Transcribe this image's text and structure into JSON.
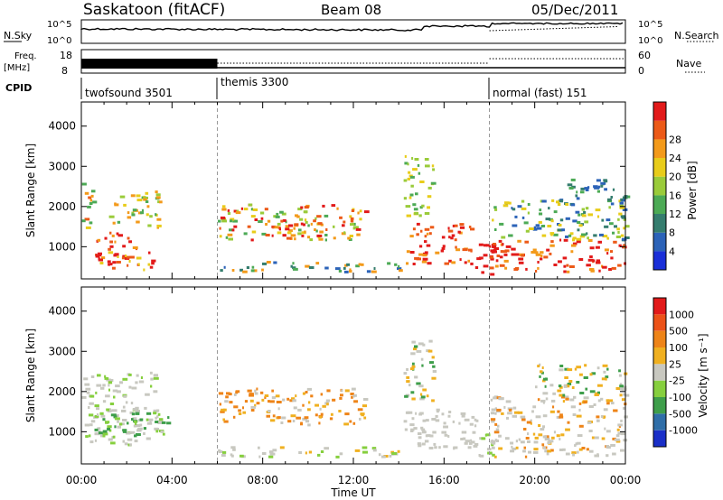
{
  "header": {
    "station_title": "Saskatoon (fitACF)",
    "beam_title": "Beam 08",
    "date_title": "05/Dec/2011"
  },
  "panels": {
    "nsky": {
      "label": "N.Sky",
      "right_label": "N.Search",
      "left_ticks": [
        "10^5",
        "10^0"
      ],
      "right_ticks": [
        "10^5",
        "10^0"
      ]
    },
    "freq": {
      "label_line1": "Freq.",
      "label_line2": "[MHz]",
      "left_ticks": [
        "18",
        "8"
      ],
      "right_ticks": [
        "60",
        "0"
      ],
      "right_label": "Nave"
    },
    "cpid": {
      "label": "CPID",
      "modes": [
        {
          "name": "twofsound 3501",
          "start_hour": 0
        },
        {
          "name": "themis 3300",
          "start_hour": 6
        },
        {
          "name": "normal (fast) 151",
          "start_hour": 18
        }
      ]
    }
  },
  "chart_data": [
    {
      "type": "heatmap",
      "name": "power",
      "ylabel": "Slant Range [km]",
      "ylim": [
        200,
        4600
      ],
      "yticks": [
        1000,
        2000,
        3000,
        4000
      ],
      "xlim": [
        0,
        24
      ],
      "colorbar": {
        "label": "Power [dB]",
        "ticks": [
          4,
          8,
          12,
          16,
          20,
          24,
          28
        ],
        "colors": [
          "#1a2fd8",
          "#2c63b8",
          "#357d6e",
          "#4caa55",
          "#9acb3a",
          "#e8cc1a",
          "#f39a1a",
          "#ec5a18",
          "#e21a1a"
        ]
      }
    },
    {
      "type": "heatmap",
      "name": "velocity",
      "ylabel": "Slant Range [km]",
      "xlabel": "Time UT",
      "ylim": [
        200,
        4600
      ],
      "yticks": [
        1000,
        2000,
        3000,
        4000
      ],
      "xlim": [
        0,
        24
      ],
      "xticks": [
        "00:00",
        "04:00",
        "08:00",
        "12:00",
        "16:00",
        "20:00",
        "00:00"
      ],
      "colorbar": {
        "label": "Velocity [m s⁻¹]",
        "ticks": [
          "1000",
          "500",
          "100",
          "25",
          "-25",
          "-100",
          "-500",
          "-1000"
        ],
        "colors": [
          "#1a2fc8",
          "#2f6ea8",
          "#3e9e4a",
          "#86cf3e",
          "#c8c8c0",
          "#f0b020",
          "#ee8418",
          "#ec5218",
          "#e21a1a"
        ]
      }
    }
  ]
}
